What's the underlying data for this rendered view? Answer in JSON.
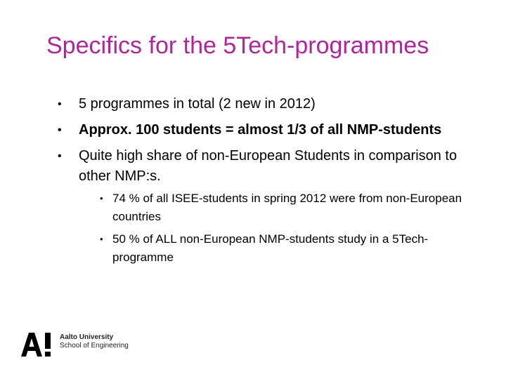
{
  "slide": {
    "title": "Specifics for the 5Tech-programmes",
    "bullets": [
      {
        "text": "5 programmes in total (2 new in 2012)"
      },
      {
        "text": "Approx. 100 students = almost 1/3 of all NMP-students"
      },
      {
        "text": "Quite high share of non-European Students in comparison to other NMP:s."
      }
    ],
    "sub_bullets": [
      {
        "text": "74 % of all ISEE-students in spring 2012 were from non-European  countries"
      },
      {
        "text": "50 % of ALL non-European NMP-students study in a 5Tech-programme"
      }
    ],
    "bullet_glyph": "•"
  },
  "logo": {
    "university": "Aalto University",
    "school": "School of Engineering"
  },
  "colors": {
    "title": "#b1259c",
    "text": "#000000",
    "background": "#ffffff"
  }
}
